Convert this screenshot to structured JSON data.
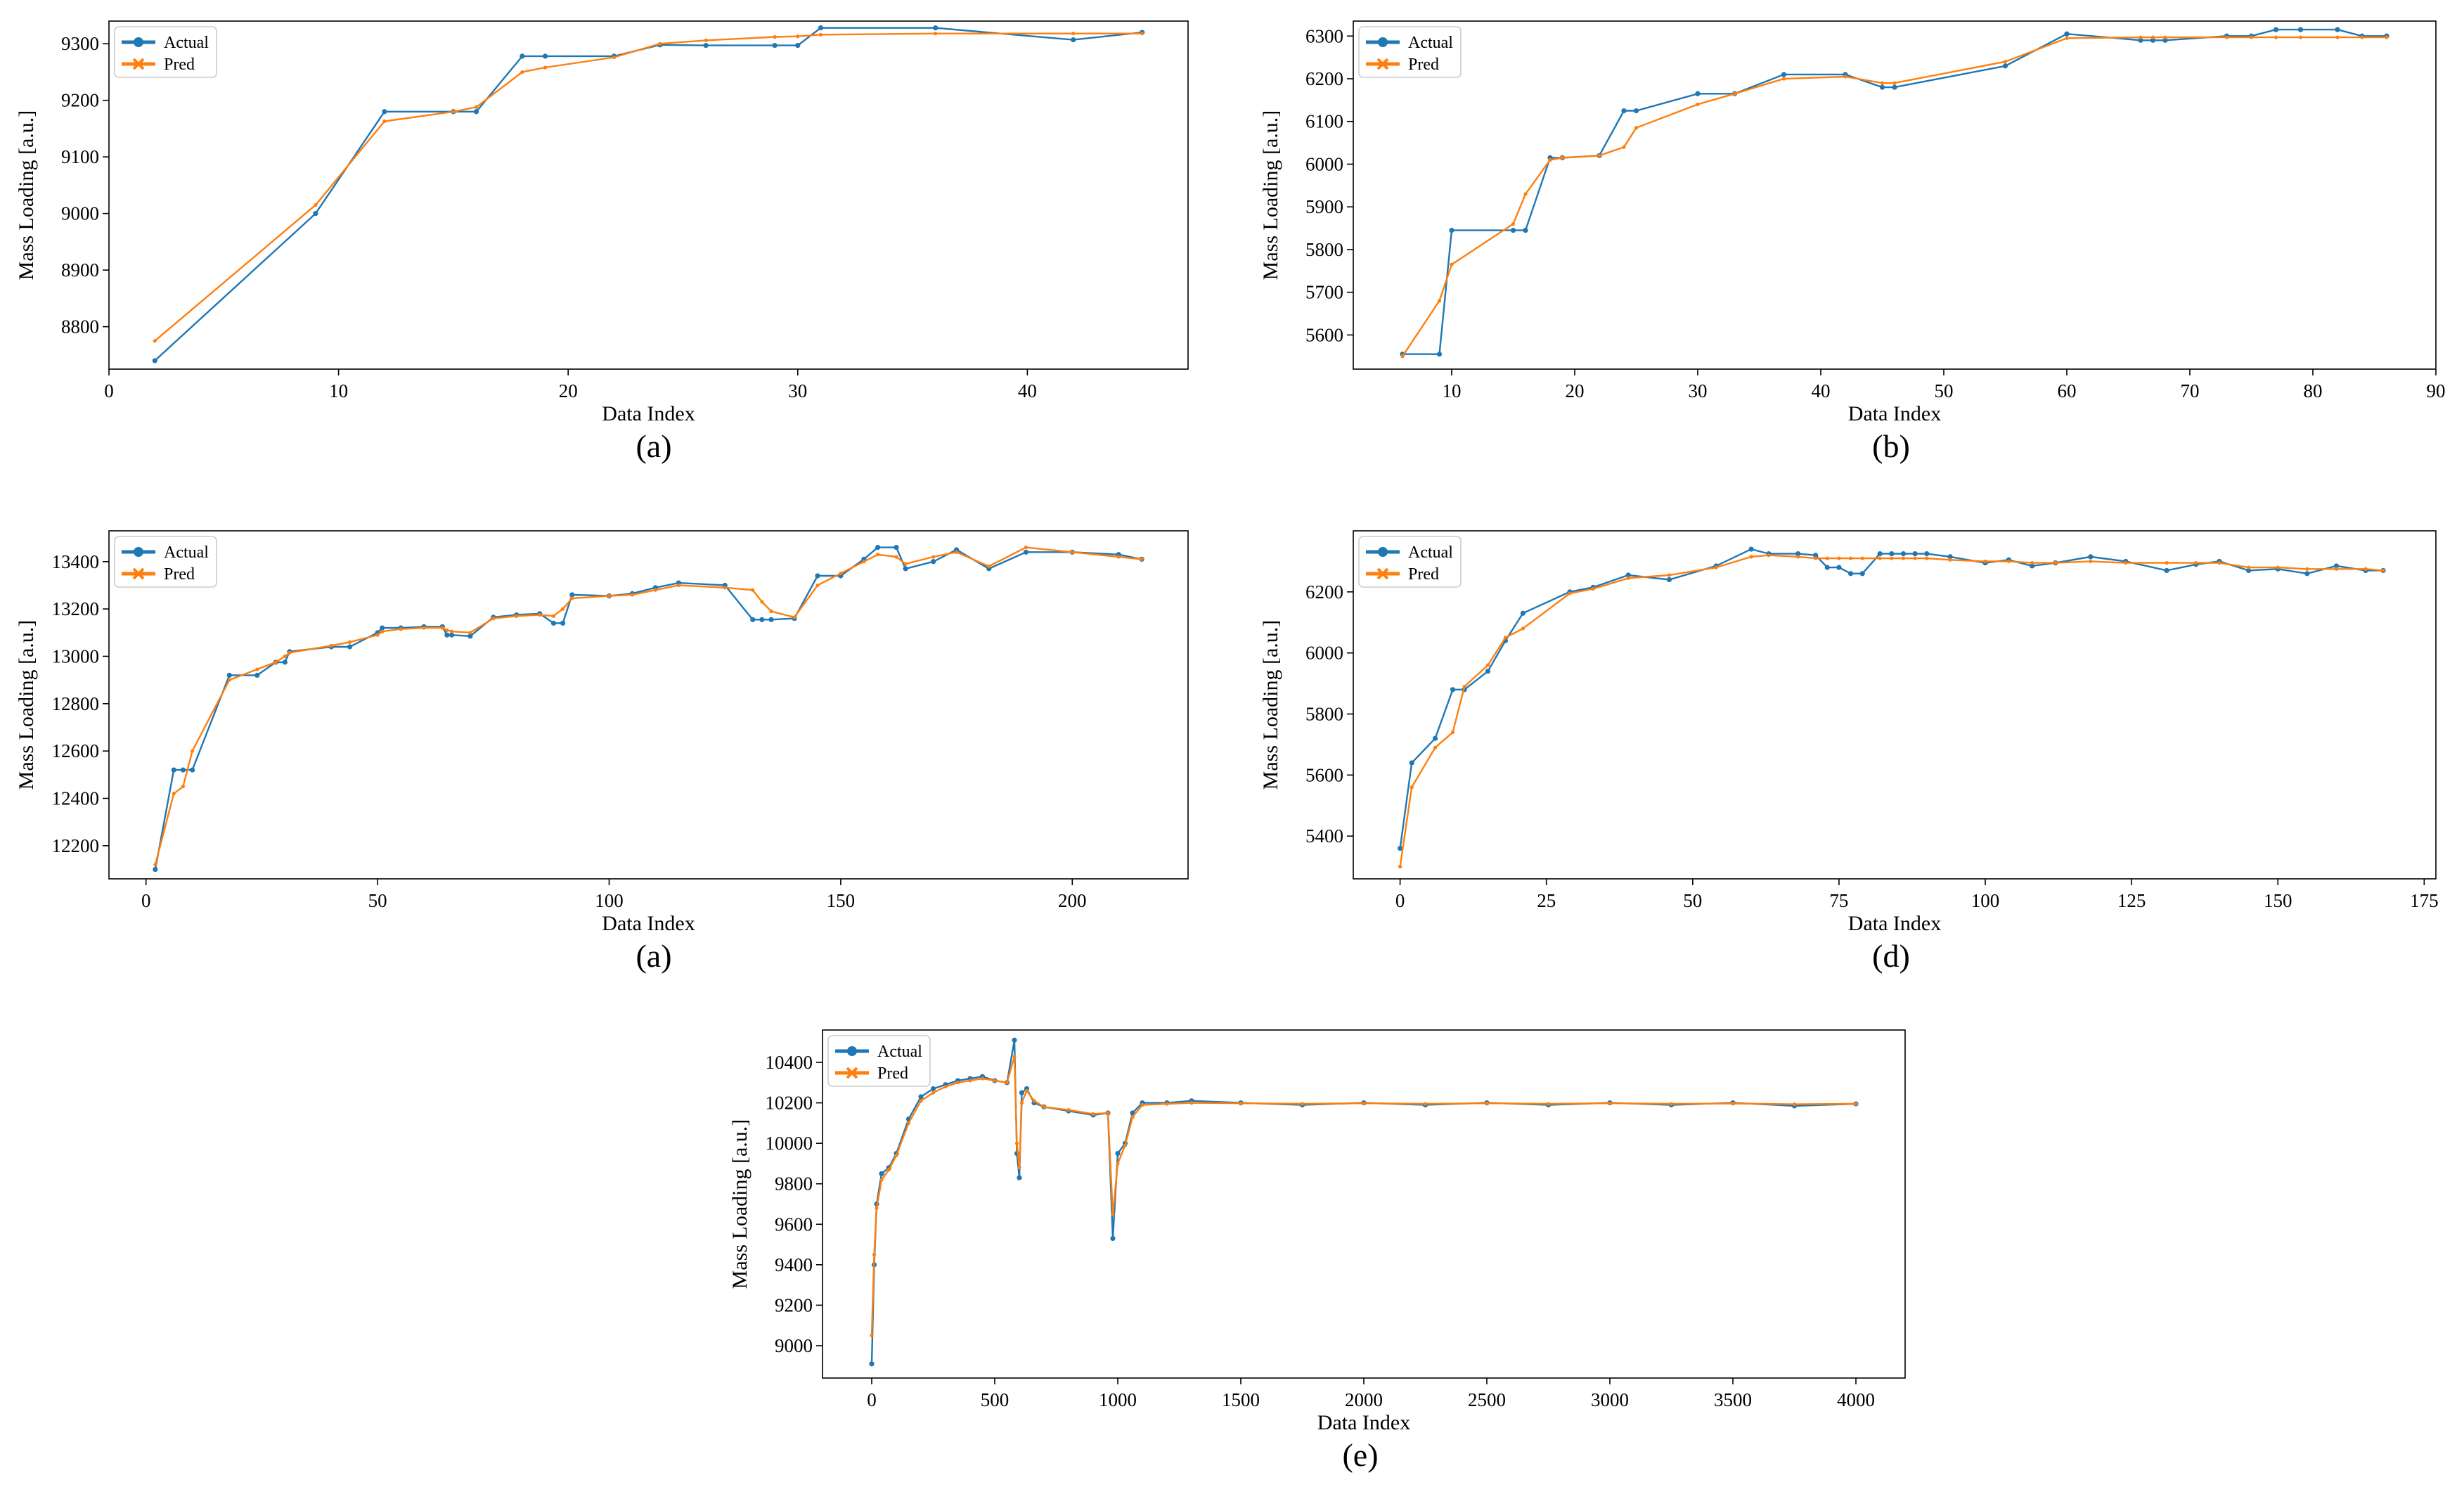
{
  "colors": {
    "actual": "#1f77b4",
    "pred": "#ff7f0e",
    "frame": "#000000",
    "legend_border": "#cccccc"
  },
  "chart_data": [
    {
      "caption": "(a)",
      "type": "line",
      "xlabel": "Data Index",
      "ylabel": "Mass Loading [a.u.]",
      "xlim": [
        0,
        47
      ],
      "ylim": [
        8725,
        9340
      ],
      "xticks": [
        0,
        10,
        20,
        30,
        40
      ],
      "yticks": [
        8800,
        8900,
        9000,
        9100,
        9200,
        9300
      ],
      "grid": false,
      "legend": "upper-left",
      "series": [
        {
          "name": "Actual",
          "x": [
            2,
            9,
            12,
            15,
            16,
            18,
            19,
            22,
            24,
            26,
            29,
            30,
            31,
            36,
            42,
            45
          ],
          "y": [
            8740,
            9000,
            9180,
            9180,
            9180,
            9278,
            9278,
            9278,
            9298,
            9297,
            9297,
            9297,
            9328,
            9328,
            9307,
            9320
          ]
        },
        {
          "name": "Pred",
          "x": [
            2,
            9,
            12,
            15,
            16,
            18,
            19,
            22,
            24,
            26,
            29,
            30,
            31,
            36,
            42,
            45
          ],
          "y": [
            8775,
            9015,
            9163,
            9180,
            9188,
            9250,
            9258,
            9276,
            9300,
            9306,
            9312,
            9313,
            9316,
            9318,
            9318,
            9318
          ]
        }
      ]
    },
    {
      "caption": "(b)",
      "type": "line",
      "xlabel": "Data Index",
      "ylabel": "Mass Loading [a.u.]",
      "xlim": [
        2,
        90
      ],
      "ylim": [
        5520,
        6335
      ],
      "xticks": [
        10,
        20,
        30,
        40,
        50,
        60,
        70,
        80,
        90
      ],
      "yticks": [
        5600,
        5700,
        5800,
        5900,
        6000,
        6100,
        6200,
        6300
      ],
      "grid": false,
      "legend": "upper-left",
      "series": [
        {
          "name": "Actual",
          "x": [
            6,
            9,
            10,
            15,
            16,
            18,
            19,
            22,
            24,
            25,
            30,
            33,
            37,
            42,
            45,
            46,
            55,
            60,
            66,
            67,
            68,
            73,
            75,
            77,
            79,
            82,
            84,
            86
          ],
          "y": [
            5555,
            5555,
            5845,
            5845,
            5845,
            6015,
            6015,
            6020,
            6125,
            6125,
            6165,
            6165,
            6210,
            6210,
            6180,
            6180,
            6230,
            6305,
            6290,
            6290,
            6290,
            6300,
            6300,
            6315,
            6315,
            6315,
            6300,
            6300
          ]
        },
        {
          "name": "Pred",
          "x": [
            6,
            9,
            10,
            15,
            16,
            18,
            19,
            22,
            24,
            25,
            30,
            33,
            37,
            42,
            45,
            46,
            55,
            60,
            66,
            67,
            68,
            73,
            75,
            77,
            79,
            82,
            84,
            86
          ],
          "y": [
            5550,
            5680,
            5765,
            5860,
            5930,
            6010,
            6015,
            6020,
            6040,
            6085,
            6140,
            6165,
            6200,
            6205,
            6190,
            6190,
            6240,
            6295,
            6297,
            6297,
            6297,
            6297,
            6297,
            6297,
            6297,
            6297,
            6297,
            6297
          ]
        }
      ]
    },
    {
      "caption": "(a)",
      "type": "line",
      "xlabel": "Data Index",
      "ylabel": "Mass Loading [a.u.]",
      "xlim": [
        -8,
        225
      ],
      "ylim": [
        12060,
        13530
      ],
      "xticks": [
        0,
        50,
        100,
        150,
        200
      ],
      "yticks": [
        12200,
        12400,
        12600,
        12800,
        13000,
        13200,
        13400
      ],
      "grid": false,
      "legend": "upper-left",
      "series": [
        {
          "name": "Actual",
          "x": [
            2,
            6,
            8,
            10,
            18,
            24,
            28,
            30,
            31,
            40,
            44,
            50,
            51,
            55,
            60,
            64,
            65,
            66,
            70,
            75,
            80,
            85,
            88,
            90,
            92,
            100,
            105,
            110,
            115,
            125,
            131,
            133,
            135,
            140,
            145,
            150,
            155,
            158,
            162,
            164,
            170,
            175,
            182,
            190,
            200,
            210,
            215
          ],
          "y": [
            12100,
            12520,
            12520,
            12520,
            12920,
            12920,
            12975,
            12975,
            13020,
            13040,
            13040,
            13100,
            13120,
            13120,
            13125,
            13125,
            13090,
            13090,
            13085,
            13165,
            13175,
            13180,
            13140,
            13140,
            13260,
            13255,
            13265,
            13290,
            13310,
            13300,
            13155,
            13155,
            13155,
            13160,
            13340,
            13340,
            13410,
            13460,
            13460,
            13370,
            13400,
            13450,
            13370,
            13440,
            13440,
            13430,
            13410
          ]
        },
        {
          "name": "Pred",
          "x": [
            2,
            6,
            8,
            10,
            18,
            24,
            28,
            30,
            31,
            40,
            44,
            50,
            51,
            55,
            60,
            64,
            65,
            66,
            70,
            75,
            80,
            85,
            88,
            90,
            92,
            100,
            105,
            110,
            115,
            125,
            131,
            133,
            135,
            140,
            145,
            150,
            155,
            158,
            162,
            164,
            170,
            175,
            182,
            190,
            200,
            210,
            215
          ],
          "y": [
            12120,
            12420,
            12450,
            12600,
            12900,
            12945,
            12975,
            13000,
            13015,
            13045,
            13060,
            13090,
            13105,
            13115,
            13120,
            13120,
            13110,
            13105,
            13100,
            13160,
            13170,
            13175,
            13170,
            13200,
            13245,
            13255,
            13260,
            13280,
            13300,
            13290,
            13280,
            13230,
            13190,
            13165,
            13300,
            13350,
            13400,
            13430,
            13420,
            13390,
            13420,
            13440,
            13380,
            13460,
            13440,
            13420,
            13410
          ]
        }
      ]
    },
    {
      "caption": "(d)",
      "type": "line",
      "xlabel": "Data Index",
      "ylabel": "Mass Loading [a.u.]",
      "xlim": [
        -8,
        177
      ],
      "ylim": [
        5260,
        6400
      ],
      "xticks": [
        0,
        25,
        50,
        75,
        100,
        125,
        150,
        175
      ],
      "yticks": [
        5400,
        5600,
        5800,
        6000,
        6200
      ],
      "grid": false,
      "legend": "upper-left",
      "series": [
        {
          "name": "Actual",
          "x": [
            0,
            2,
            6,
            9,
            11,
            15,
            18,
            21,
            29,
            33,
            39,
            46,
            54,
            60,
            63,
            68,
            71,
            73,
            75,
            77,
            79,
            82,
            84,
            86,
            88,
            90,
            94,
            100,
            104,
            108,
            112,
            118,
            124,
            131,
            136,
            140,
            145,
            150,
            155,
            160,
            165,
            168
          ],
          "y": [
            5360,
            5640,
            5720,
            5880,
            5880,
            5940,
            6040,
            6130,
            6200,
            6215,
            6255,
            6240,
            6285,
            6340,
            6325,
            6325,
            6320,
            6280,
            6280,
            6260,
            6260,
            6325,
            6325,
            6325,
            6325,
            6325,
            6315,
            6295,
            6305,
            6285,
            6295,
            6315,
            6300,
            6270,
            6290,
            6300,
            6270,
            6275,
            6260,
            6285,
            6270,
            6270
          ]
        },
        {
          "name": "Pred",
          "x": [
            0,
            2,
            6,
            9,
            11,
            15,
            18,
            21,
            29,
            33,
            39,
            46,
            54,
            60,
            63,
            68,
            71,
            73,
            75,
            77,
            79,
            82,
            84,
            86,
            88,
            90,
            94,
            100,
            104,
            108,
            112,
            118,
            124,
            131,
            136,
            140,
            145,
            150,
            155,
            160,
            165,
            168
          ],
          "y": [
            5300,
            5560,
            5690,
            5740,
            5890,
            5960,
            6050,
            6080,
            6195,
            6210,
            6245,
            6255,
            6280,
            6315,
            6320,
            6315,
            6310,
            6310,
            6310,
            6310,
            6310,
            6310,
            6310,
            6310,
            6310,
            6310,
            6305,
            6300,
            6300,
            6295,
            6295,
            6300,
            6295,
            6295,
            6295,
            6295,
            6280,
            6280,
            6275,
            6275,
            6275,
            6270
          ]
        }
      ]
    },
    {
      "caption": "(e)",
      "type": "line",
      "xlabel": "Data Index",
      "ylabel": "Mass Loading [a.u.]",
      "xlim": [
        -200,
        4200
      ],
      "ylim": [
        8840,
        10560
      ],
      "xticks": [
        0,
        500,
        1000,
        1500,
        2000,
        2500,
        3000,
        3500,
        4000
      ],
      "yticks": [
        9000,
        9200,
        9400,
        9600,
        9800,
        10000,
        10200,
        10400
      ],
      "grid": false,
      "legend": "upper-left",
      "series": [
        {
          "name": "Actual",
          "x": [
            0,
            10,
            20,
            40,
            70,
            100,
            150,
            200,
            250,
            300,
            350,
            400,
            450,
            500,
            550,
            580,
            590,
            600,
            610,
            630,
            660,
            700,
            800,
            900,
            960,
            980,
            1000,
            1030,
            1060,
            1100,
            1200,
            1300,
            1500,
            1750,
            2000,
            2250,
            2500,
            2750,
            3000,
            3250,
            3500,
            3750,
            4000
          ],
          "y": [
            8910,
            9400,
            9700,
            9850,
            9880,
            9950,
            10120,
            10230,
            10270,
            10290,
            10310,
            10320,
            10330,
            10310,
            10300,
            10510,
            9950,
            9830,
            10250,
            10270,
            10200,
            10180,
            10160,
            10140,
            10150,
            9530,
            9950,
            10000,
            10150,
            10200,
            10200,
            10210,
            10200,
            10190,
            10200,
            10190,
            10200,
            10190,
            10200,
            10190,
            10200,
            10185,
            10195
          ]
        },
        {
          "name": "Pred",
          "x": [
            0,
            10,
            20,
            40,
            70,
            100,
            150,
            200,
            250,
            300,
            350,
            400,
            450,
            500,
            550,
            580,
            590,
            600,
            610,
            630,
            660,
            700,
            800,
            900,
            960,
            980,
            1000,
            1030,
            1060,
            1100,
            1200,
            1300,
            1500,
            1750,
            2000,
            2250,
            2500,
            2750,
            3000,
            3250,
            3500,
            3750,
            4000
          ],
          "y": [
            9050,
            9450,
            9680,
            9820,
            9870,
            9940,
            10100,
            10210,
            10250,
            10280,
            10300,
            10310,
            10320,
            10310,
            10300,
            10430,
            10000,
            9880,
            10200,
            10260,
            10210,
            10180,
            10165,
            10145,
            10150,
            9650,
            9900,
            9990,
            10130,
            10190,
            10195,
            10200,
            10198,
            10195,
            10198,
            10195,
            10198,
            10195,
            10198,
            10195,
            10197,
            10193,
            10195
          ]
        }
      ]
    }
  ]
}
